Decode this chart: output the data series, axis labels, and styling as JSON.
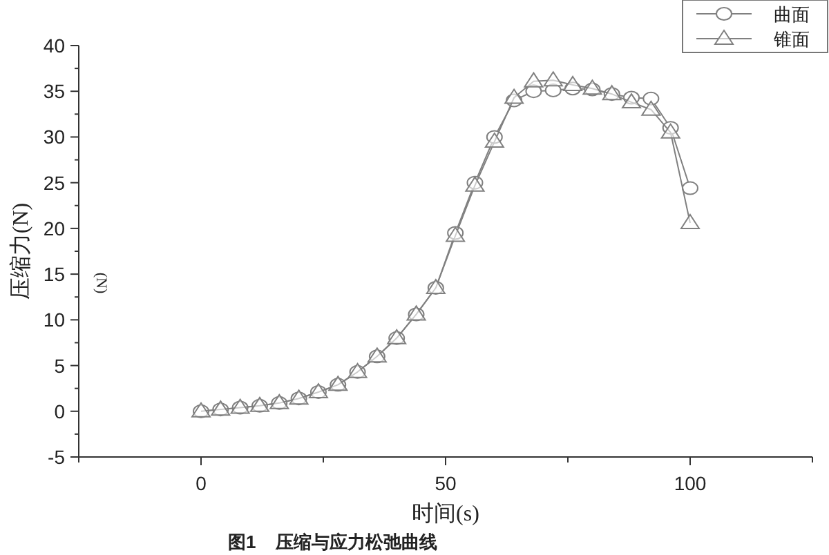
{
  "chart_data": {
    "type": "line",
    "xlabel": "时间(s)",
    "ylabel": "压缩力(N)",
    "annotations": [
      "(N)",
      "图1    压缩与应力松弛曲线"
    ],
    "x": [
      0,
      4,
      8,
      12,
      16,
      20,
      24,
      28,
      32,
      36,
      40,
      44,
      48,
      52,
      56,
      60,
      64,
      68,
      72,
      76,
      80,
      84,
      88,
      92,
      96,
      100
    ],
    "series": [
      {
        "name": "曲面",
        "color": "#808080",
        "marker": "circle",
        "values": [
          0,
          0.2,
          0.4,
          0.6,
          0.9,
          1.4,
          2.1,
          2.9,
          4.3,
          6.0,
          8.0,
          10.6,
          13.5,
          19.5,
          25,
          30,
          34,
          35,
          35.1,
          35.3,
          35.2,
          34.7,
          34.3,
          34.2,
          31,
          24.4
        ]
      },
      {
        "name": "锥面",
        "color": "#808080",
        "marker": "triangle",
        "values": [
          0,
          0.2,
          0.4,
          0.6,
          0.9,
          1.4,
          2.1,
          2.9,
          4.3,
          6.0,
          8.0,
          10.6,
          13.5,
          19.2,
          24.7,
          29.5,
          34.3,
          36.1,
          36.2,
          35.7,
          35.3,
          34.7,
          33.8,
          33.0,
          30.5,
          20.6
        ]
      }
    ],
    "xlim": [
      -25,
      125
    ],
    "xticks": [
      0,
      50,
      100
    ],
    "ylim": [
      -5,
      40
    ],
    "yticks": [
      -5,
      0,
      5,
      10,
      15,
      20,
      25,
      30,
      35,
      40
    ],
    "grid": false,
    "legend": "top right",
    "line_style": "solid"
  }
}
